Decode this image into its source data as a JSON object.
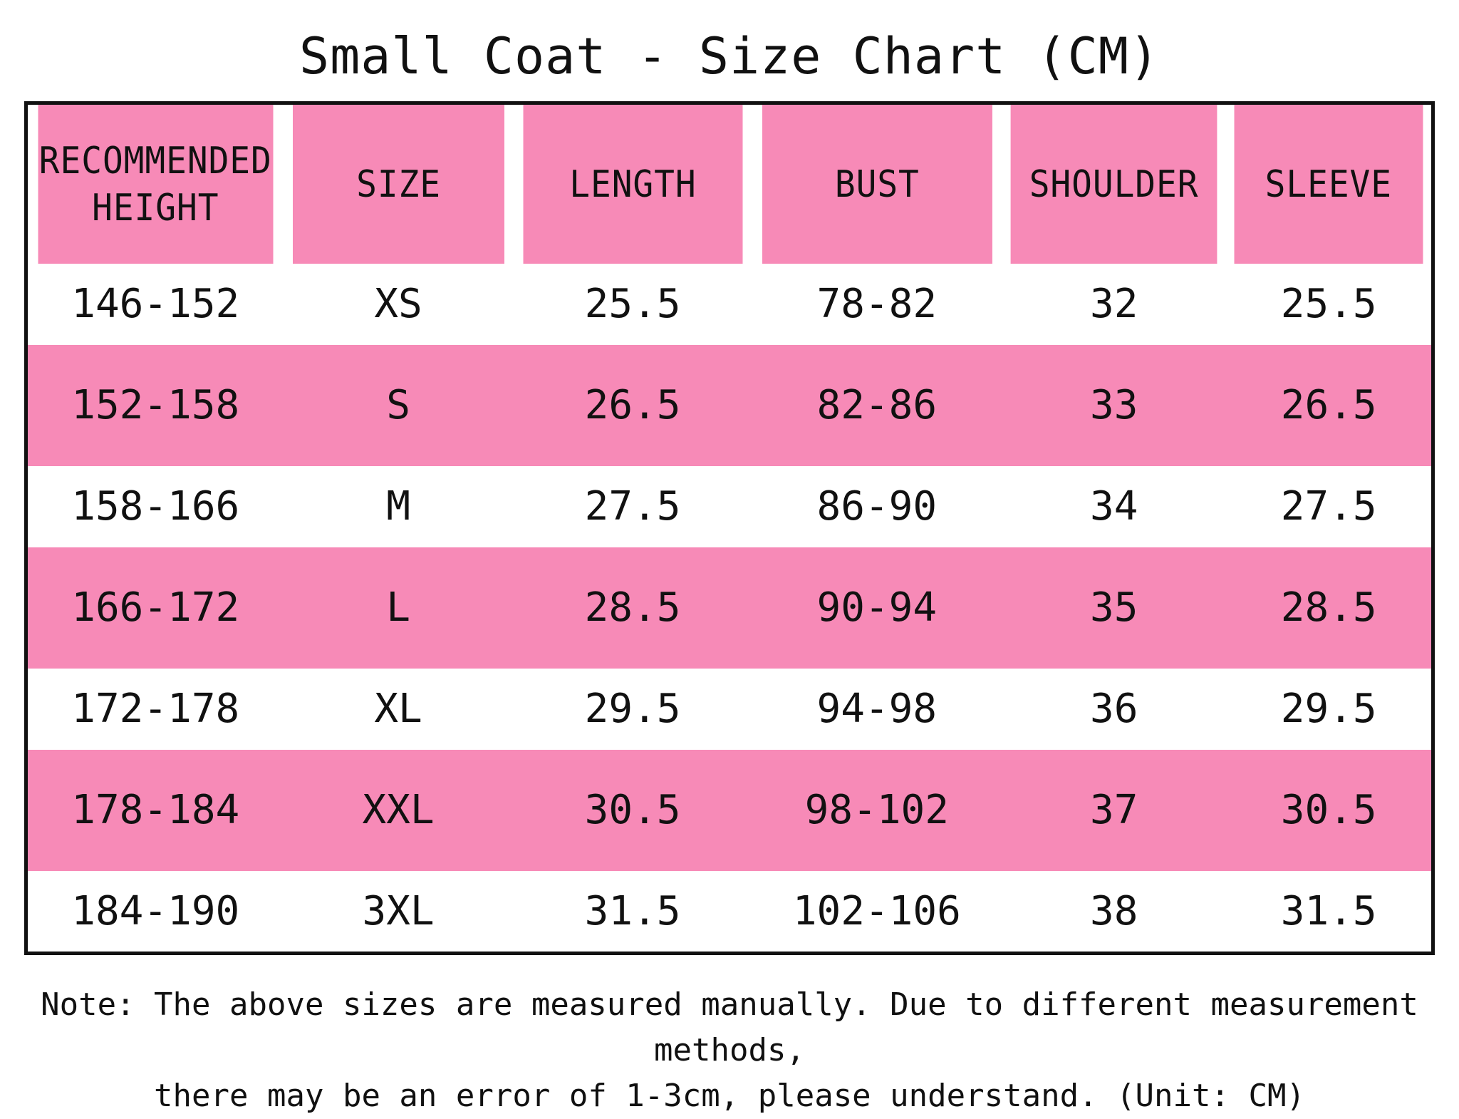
{
  "title": "Small Coat - Size Chart (CM)",
  "colors": {
    "header_bg": "#f78ab7",
    "stripe_bg": "#f78ab7",
    "plain_bg": "#ffffff",
    "border": "#111111",
    "text": "#111111"
  },
  "chart_data": {
    "type": "table",
    "title": "Small Coat - Size Chart (CM)",
    "columns": [
      "RECOMMENDED HEIGHT",
      "SIZE",
      "LENGTH",
      "BUST",
      "SHOULDER",
      "SLEEVE"
    ],
    "header_lines": {
      "height_line1": "RECOMMENDED",
      "height_line2": "HEIGHT"
    },
    "rows": [
      {
        "height": "146-152",
        "size": "XS",
        "length": "25.5",
        "bust": "78-82",
        "shoulder": "32",
        "sleeve": "25.5"
      },
      {
        "height": "152-158",
        "size": "S",
        "length": "26.5",
        "bust": "82-86",
        "shoulder": "33",
        "sleeve": "26.5"
      },
      {
        "height": "158-166",
        "size": "M",
        "length": "27.5",
        "bust": "86-90",
        "shoulder": "34",
        "sleeve": "27.5"
      },
      {
        "height": "166-172",
        "size": "L",
        "length": "28.5",
        "bust": "90-94",
        "shoulder": "35",
        "sleeve": "28.5"
      },
      {
        "height": "172-178",
        "size": "XL",
        "length": "29.5",
        "bust": "94-98",
        "shoulder": "36",
        "sleeve": "29.5"
      },
      {
        "height": "178-184",
        "size": "XXL",
        "length": "30.5",
        "bust": "98-102",
        "shoulder": "37",
        "sleeve": "30.5"
      },
      {
        "height": "184-190",
        "size": "3XL",
        "length": "31.5",
        "bust": "102-106",
        "shoulder": "38",
        "sleeve": "31.5"
      }
    ]
  },
  "note": {
    "line1": "Note: The above sizes are measured manually. Due to different measurement methods,",
    "line2": "there may be an error of 1-3cm, please understand. (Unit: CM)"
  }
}
